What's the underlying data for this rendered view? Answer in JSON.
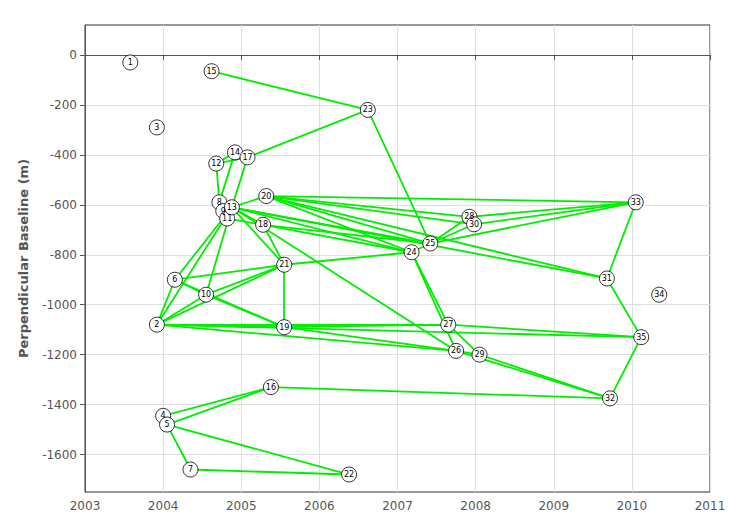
{
  "chart_data": {
    "type": "network",
    "ylabel": "Perpendicular Baseline (m)",
    "nodes": [
      {
        "id": 1,
        "x": 2003.58,
        "y": -30
      },
      {
        "id": 2,
        "x": 2003.92,
        "y": -1080
      },
      {
        "id": 3,
        "x": 2003.92,
        "y": -290
      },
      {
        "id": 4,
        "x": 2004.0,
        "y": -1445
      },
      {
        "id": 5,
        "x": 2004.05,
        "y": -1480
      },
      {
        "id": 6,
        "x": 2004.15,
        "y": -900
      },
      {
        "id": 7,
        "x": 2004.35,
        "y": -1660
      },
      {
        "id": 8,
        "x": 2004.72,
        "y": -590
      },
      {
        "id": 9,
        "x": 2004.77,
        "y": -625
      },
      {
        "id": 10,
        "x": 2004.55,
        "y": -960
      },
      {
        "id": 11,
        "x": 2004.82,
        "y": -655
      },
      {
        "id": 12,
        "x": 2004.68,
        "y": -435
      },
      {
        "id": 13,
        "x": 2004.88,
        "y": -610
      },
      {
        "id": 14,
        "x": 2004.92,
        "y": -390
      },
      {
        "id": 15,
        "x": 2004.62,
        "y": -65
      },
      {
        "id": 16,
        "x": 2005.38,
        "y": -1330
      },
      {
        "id": 17,
        "x": 2005.08,
        "y": -410
      },
      {
        "id": 18,
        "x": 2005.28,
        "y": -680
      },
      {
        "id": 19,
        "x": 2005.55,
        "y": -1090
      },
      {
        "id": 20,
        "x": 2005.32,
        "y": -565
      },
      {
        "id": 21,
        "x": 2005.55,
        "y": -840
      },
      {
        "id": 22,
        "x": 2006.38,
        "y": -1680
      },
      {
        "id": 23,
        "x": 2006.62,
        "y": -220
      },
      {
        "id": 24,
        "x": 2007.18,
        "y": -790
      },
      {
        "id": 25,
        "x": 2007.42,
        "y": -755
      },
      {
        "id": 26,
        "x": 2007.75,
        "y": -1185
      },
      {
        "id": 27,
        "x": 2007.65,
        "y": -1080
      },
      {
        "id": 28,
        "x": 2007.92,
        "y": -648
      },
      {
        "id": 29,
        "x": 2008.05,
        "y": -1200
      },
      {
        "id": 30,
        "x": 2007.98,
        "y": -678
      },
      {
        "id": 31,
        "x": 2009.68,
        "y": -895
      },
      {
        "id": 32,
        "x": 2009.72,
        "y": -1375
      },
      {
        "id": 33,
        "x": 2010.05,
        "y": -590
      },
      {
        "id": 34,
        "x": 2010.35,
        "y": -960
      },
      {
        "id": 35,
        "x": 2010.12,
        "y": -1130
      }
    ],
    "edges": [
      [
        2,
        6
      ],
      [
        2,
        10
      ],
      [
        2,
        13
      ],
      [
        2,
        19
      ],
      [
        2,
        21
      ],
      [
        2,
        26
      ],
      [
        2,
        27
      ],
      [
        2,
        35
      ],
      [
        4,
        16
      ],
      [
        5,
        7
      ],
      [
        5,
        16
      ],
      [
        5,
        22
      ],
      [
        6,
        10
      ],
      [
        6,
        13
      ],
      [
        6,
        19
      ],
      [
        6,
        21
      ],
      [
        7,
        22
      ],
      [
        8,
        12
      ],
      [
        8,
        13
      ],
      [
        8,
        14
      ],
      [
        9,
        11
      ],
      [
        9,
        13
      ],
      [
        10,
        13
      ],
      [
        10,
        19
      ],
      [
        10,
        21
      ],
      [
        11,
        13
      ],
      [
        11,
        18
      ],
      [
        12,
        14
      ],
      [
        12,
        17
      ],
      [
        13,
        17
      ],
      [
        13,
        18
      ],
      [
        13,
        20
      ],
      [
        13,
        21
      ],
      [
        13,
        24
      ],
      [
        13,
        25
      ],
      [
        13,
        26
      ],
      [
        13,
        31
      ],
      [
        14,
        17
      ],
      [
        15,
        23
      ],
      [
        16,
        32
      ],
      [
        17,
        23
      ],
      [
        18,
        21
      ],
      [
        18,
        24
      ],
      [
        18,
        25
      ],
      [
        19,
        21
      ],
      [
        19,
        26
      ],
      [
        19,
        27
      ],
      [
        20,
        24
      ],
      [
        20,
        25
      ],
      [
        20,
        28
      ],
      [
        20,
        30
      ],
      [
        20,
        31
      ],
      [
        20,
        33
      ],
      [
        21,
        24
      ],
      [
        23,
        25
      ],
      [
        24,
        25
      ],
      [
        24,
        26
      ],
      [
        24,
        27
      ],
      [
        25,
        28
      ],
      [
        25,
        30
      ],
      [
        25,
        33
      ],
      [
        26,
        29
      ],
      [
        26,
        32
      ],
      [
        27,
        29
      ],
      [
        27,
        35
      ],
      [
        28,
        30
      ],
      [
        28,
        33
      ],
      [
        29,
        32
      ],
      [
        30,
        33
      ],
      [
        31,
        33
      ],
      [
        31,
        35
      ],
      [
        32,
        35
      ]
    ],
    "color": "#00EE00",
    "xlim": [
      2003,
      2011
    ],
    "xticks": [
      2003,
      2004,
      2005,
      2006,
      2007,
      2008,
      2009,
      2010,
      2011
    ],
    "ylim": [
      -1750,
      120
    ],
    "yticks": [
      0,
      -200,
      -400,
      -600,
      -800,
      -1000,
      -1200,
      -1400,
      -1600
    ],
    "grid": true
  }
}
